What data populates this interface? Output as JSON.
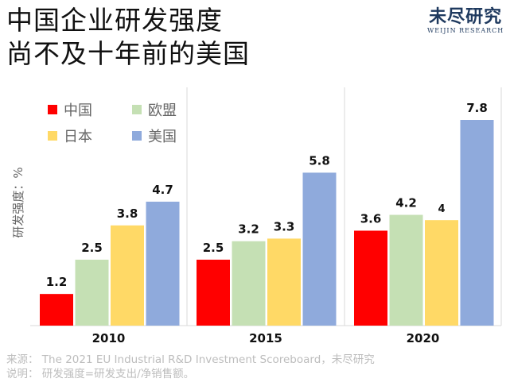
{
  "title": {
    "line1": "中国企业研发强度",
    "line2": "尚不及十年前的美国"
  },
  "logo": {
    "cn": "未尽研究",
    "en": "WEIJIN RESEARCH"
  },
  "chart_data": {
    "type": "bar",
    "categories": [
      "2010",
      "2015",
      "2020"
    ],
    "ylabel": "研发强度：%",
    "ylim": [
      0,
      8
    ],
    "grid": false,
    "legend": "top-left",
    "series": [
      {
        "name": "中国",
        "color": "#FF0000",
        "values": [
          1.2,
          2.5,
          3.6
        ]
      },
      {
        "name": "欧盟",
        "color": "#C5E0B4",
        "values": [
          2.5,
          3.2,
          4.2
        ]
      },
      {
        "name": "日本",
        "color": "#FFD966",
        "values": [
          3.8,
          3.3,
          4
        ]
      },
      {
        "name": "美国",
        "color": "#8FAADC",
        "values": [
          4.7,
          5.8,
          7.8
        ]
      }
    ]
  },
  "footer": {
    "source": "来源： The 2021 EU Industrial R&D Investment Scoreboard，未尽研究",
    "note": "说明： 研发强度=研发支出/净销售额。"
  }
}
